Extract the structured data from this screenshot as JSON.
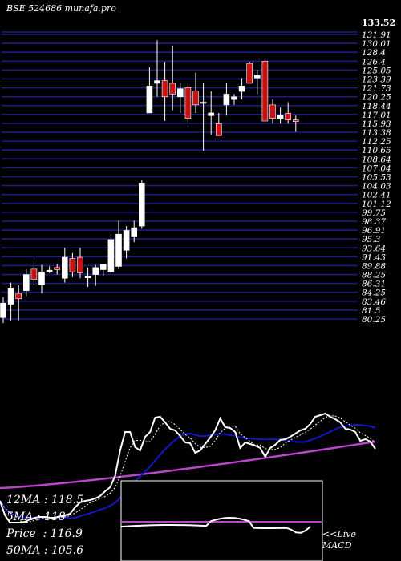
{
  "header": {
    "title": "BSE 524686  munafa.pro",
    "top_price": "133.52"
  },
  "stats": [
    {
      "label": "12MA",
      "value": "118.5"
    },
    {
      "label": "5MA",
      "value": "118"
    },
    {
      "label": "Price ",
      "value": "116.9"
    },
    {
      "label": "50MA",
      "value": "105.6"
    }
  ],
  "macd": {
    "line1": "<<Live",
    "line2": "MACD"
  },
  "colors": {
    "grid": "#1c1c80",
    "up": "#ffffff",
    "down": "#cc1111",
    "ma_fast": "#ffffff",
    "ma_mid": "#1515c8",
    "ma_slow": "#bb44cc"
  },
  "chart_data": {
    "type": "candlestick",
    "y_ticks": [
      "131.91",
      "130.01",
      "128.4",
      "126.4",
      "125.05",
      "123.39",
      "121.73",
      "120.25",
      "118.44",
      "117.01",
      "115.93",
      "113.38",
      "112.25",
      "110.65",
      "108.64",
      "107.04",
      "105.53",
      "104.03",
      "102.41",
      "101.12",
      "99.75",
      "98.37",
      "96.91",
      "95.3",
      "93.64",
      "91.43",
      "89.88",
      "88.25",
      "86.31",
      "84.25",
      "83.46",
      "81.5",
      "80.25"
    ],
    "ylim": [
      80.25,
      133.52
    ],
    "candles": [
      {
        "o": 80.5,
        "h": 84.3,
        "l": 79.5,
        "c": 83.2
      },
      {
        "o": 83.0,
        "h": 87.0,
        "l": 80.0,
        "c": 86.0
      },
      {
        "o": 85.0,
        "h": 86.5,
        "l": 80.0,
        "c": 84.0
      },
      {
        "o": 85.5,
        "h": 89.5,
        "l": 84.5,
        "c": 88.5
      },
      {
        "o": 89.5,
        "h": 91.0,
        "l": 86.5,
        "c": 87.6
      },
      {
        "o": 86.6,
        "h": 90.3,
        "l": 85.0,
        "c": 89.0
      },
      {
        "o": 89.2,
        "h": 90.0,
        "l": 88.8,
        "c": 89.3
      },
      {
        "o": 89.8,
        "h": 90.5,
        "l": 88.5,
        "c": 89.4
      },
      {
        "o": 87.8,
        "h": 93.5,
        "l": 87.0,
        "c": 91.7
      },
      {
        "o": 91.5,
        "h": 92.5,
        "l": 88.0,
        "c": 89.0
      },
      {
        "o": 91.7,
        "h": 93.5,
        "l": 87.8,
        "c": 88.8
      },
      {
        "o": 88.0,
        "h": 89.8,
        "l": 86.2,
        "c": 88.1
      },
      {
        "o": 88.5,
        "h": 90.3,
        "l": 86.4,
        "c": 89.8
      },
      {
        "o": 89.4,
        "h": 90.5,
        "l": 88.3,
        "c": 90.4
      },
      {
        "o": 89.0,
        "h": 96.0,
        "l": 88.5,
        "c": 95.0
      },
      {
        "o": 90.0,
        "h": 98.5,
        "l": 89.5,
        "c": 96.0
      },
      {
        "o": 93.0,
        "h": 97.5,
        "l": 91.5,
        "c": 96.7
      },
      {
        "o": 95.5,
        "h": 98.5,
        "l": 94.5,
        "c": 97.2
      },
      {
        "o": 97.5,
        "h": 106.0,
        "l": 97.0,
        "c": 105.5
      },
      {
        "o": 118.5,
        "h": 127.0,
        "l": 118.5,
        "c": 123.5
      },
      {
        "o": 124.0,
        "h": 132.0,
        "l": 121.5,
        "c": 124.5
      },
      {
        "o": 124.5,
        "h": 128.0,
        "l": 117.0,
        "c": 121.5
      },
      {
        "o": 124.0,
        "h": 131.0,
        "l": 119.0,
        "c": 122.0
      },
      {
        "o": 121.5,
        "h": 124.0,
        "l": 118.5,
        "c": 123.0
      },
      {
        "o": 123.2,
        "h": 124.0,
        "l": 116.5,
        "c": 117.5
      },
      {
        "o": 122.6,
        "h": 126.0,
        "l": 118.5,
        "c": 120.0
      },
      {
        "o": 120.5,
        "h": 124.0,
        "l": 111.5,
        "c": 120.5
      },
      {
        "o": 118.0,
        "h": 122.5,
        "l": 114.5,
        "c": 118.5
      },
      {
        "o": 116.5,
        "h": 118.5,
        "l": 114.5,
        "c": 114.3
      },
      {
        "o": 120.0,
        "h": 124.0,
        "l": 118.0,
        "c": 122.0
      },
      {
        "o": 121.0,
        "h": 122.0,
        "l": 120.0,
        "c": 121.5
      },
      {
        "o": 122.5,
        "h": 125.0,
        "l": 121.0,
        "c": 123.5
      },
      {
        "o": 127.7,
        "h": 128.0,
        "l": 124.0,
        "c": 124.0
      },
      {
        "o": 125.0,
        "h": 126.5,
        "l": 122.0,
        "c": 125.5
      },
      {
        "o": 128.1,
        "h": 128.5,
        "l": 117.0,
        "c": 117.0
      },
      {
        "o": 120.0,
        "h": 121.0,
        "l": 116.5,
        "c": 117.5
      },
      {
        "o": 117.5,
        "h": 119.5,
        "l": 116.5,
        "c": 118.0
      },
      {
        "o": 118.4,
        "h": 120.5,
        "l": 116.5,
        "c": 117.2
      },
      {
        "o": 117.2,
        "h": 118.0,
        "l": 115.0,
        "c": 116.9
      }
    ],
    "price_line": [
      17,
      35,
      44,
      44,
      44,
      43,
      40,
      38,
      37,
      37,
      38,
      38,
      36,
      35,
      33,
      25,
      19,
      17,
      16,
      14,
      11,
      5,
      0,
      -14,
      -46,
      -69,
      -69,
      -50,
      -46,
      -63,
      -69,
      -87,
      -88,
      -81,
      -73,
      -71,
      -64,
      -56,
      -55,
      -43,
      -46,
      -54,
      -62,
      -71,
      -86,
      -75,
      -74,
      -69,
      -49,
      -56,
      -54,
      -52,
      -49,
      -38,
      -49,
      -53,
      -59,
      -60,
      -63,
      -67,
      -71,
      -73,
      -79,
      -88,
      -90,
      -92,
      -88,
      -85,
      -81,
      -73,
      -72,
      -69,
      -58,
      -60,
      -57,
      -48
    ],
    "ma_fast": [
      0,
      0,
      0,
      0,
      0,
      0,
      0,
      0,
      0,
      0,
      0,
      0,
      0,
      0,
      0,
      0,
      0,
      0,
      0,
      0,
      0,
      0,
      0,
      0,
      0,
      0,
      0,
      0,
      0,
      0,
      0,
      0,
      0,
      0,
      0,
      0,
      0,
      0,
      0,
      0,
      0,
      0,
      0,
      0,
      0,
      0,
      0,
      0,
      0,
      0,
      0,
      0,
      0,
      0,
      0,
      0,
      0,
      0,
      0,
      0,
      0,
      0,
      0,
      0,
      0,
      0,
      0,
      0,
      0,
      0,
      0,
      0,
      0,
      0,
      0,
      0
    ],
    "ma_mid": [
      0,
      0,
      0,
      0,
      0,
      0,
      0,
      0,
      0,
      0,
      0,
      0,
      0,
      0,
      0,
      0,
      0,
      0,
      0,
      0,
      0,
      0,
      0,
      0,
      0,
      0,
      0,
      0,
      0,
      0,
      0,
      0,
      0,
      0,
      0,
      0,
      0,
      0,
      0,
      0,
      0,
      0,
      0,
      0,
      0,
      0,
      0,
      0,
      0,
      0,
      0,
      0,
      0,
      0,
      0,
      0,
      0,
      0,
      0,
      0,
      0,
      0,
      0,
      0,
      0,
      0,
      0,
      0,
      0,
      0,
      0,
      0,
      0,
      0,
      0,
      0
    ],
    "ma_slow": [
      0,
      0,
      0,
      0,
      0,
      0,
      0,
      0,
      0,
      0,
      0,
      0,
      0,
      0,
      0,
      0,
      0,
      0,
      0,
      0,
      0,
      0,
      0,
      0,
      0,
      0,
      0,
      0,
      0,
      0,
      0,
      0,
      0,
      0,
      0,
      0,
      0,
      0,
      0,
      0,
      0,
      0,
      0,
      0,
      0,
      0,
      0,
      0,
      0,
      0,
      0,
      0,
      0,
      0,
      0,
      0,
      0,
      0,
      0,
      0,
      0,
      0,
      0,
      0,
      0,
      0,
      0,
      0,
      0,
      0,
      0,
      0,
      0,
      0,
      0,
      0
    ]
  }
}
